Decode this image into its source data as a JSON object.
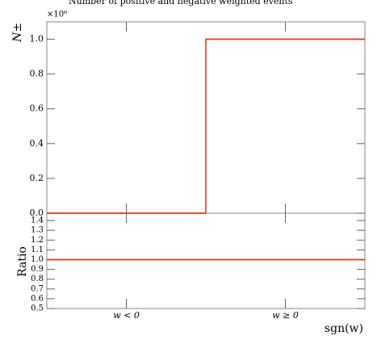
{
  "chart_data": {
    "type": "histogram_ratio",
    "title": "Number of positive and negative weighted events",
    "multiplier": "×10⁶",
    "ylabel": "N±",
    "xlabel": "sgn(w)",
    "ratio_label": "Ratio",
    "categories": [
      "w < 0",
      "w ≥ 0"
    ],
    "series": [
      {
        "color": "#e8301a",
        "values": [
          0,
          1.0
        ]
      }
    ],
    "ratio": {
      "color": "#e8301a",
      "values": [
        1.0,
        1.0
      ]
    },
    "ylim": [
      0,
      1.1
    ],
    "yticks": [
      {
        "value": 0,
        "label": "0.0"
      },
      0.2,
      0.4,
      0.6,
      0.8,
      {
        "value": 1,
        "label": "1.0"
      }
    ],
    "ratio_ylim": [
      0.5,
      1.475
    ],
    "ratio_yticks": [
      0.5,
      0.6,
      0.7,
      0.8,
      0.9,
      {
        "value": 1,
        "label": "1.0"
      },
      1.1,
      1.2,
      1.3,
      1.4
    ]
  }
}
